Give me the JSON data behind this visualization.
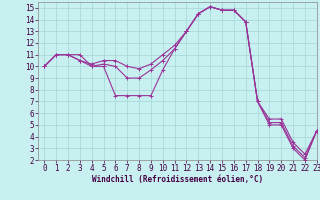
{
  "xlabel": "Windchill (Refroidissement éolien,°C)",
  "background_color": "#c8f0f0",
  "grid_color": "#aadada",
  "line_color": "#993399",
  "xlim": [
    -0.5,
    23
  ],
  "ylim": [
    2,
    15.5
  ],
  "xticks": [
    0,
    1,
    2,
    3,
    4,
    5,
    6,
    7,
    8,
    9,
    10,
    11,
    12,
    13,
    14,
    15,
    16,
    17,
    18,
    19,
    20,
    21,
    22,
    23
  ],
  "yticks": [
    2,
    3,
    4,
    5,
    6,
    7,
    8,
    9,
    10,
    11,
    12,
    13,
    14,
    15
  ],
  "series": [
    [
      10.0,
      11.0,
      11.0,
      11.0,
      10.0,
      10.0,
      7.5,
      7.5,
      7.5,
      7.5,
      9.7,
      11.5,
      13.0,
      14.5,
      15.1,
      14.8,
      14.8,
      13.8,
      7.0,
      5.0,
      5.0,
      3.0,
      2.0,
      4.5
    ],
    [
      10.0,
      11.0,
      11.0,
      10.5,
      10.0,
      10.2,
      10.0,
      9.0,
      9.0,
      9.7,
      10.5,
      11.5,
      13.0,
      14.5,
      15.1,
      14.8,
      14.8,
      13.8,
      7.0,
      5.2,
      5.2,
      3.2,
      2.2,
      4.5
    ],
    [
      10.0,
      11.0,
      11.0,
      10.5,
      10.2,
      10.5,
      10.5,
      10.0,
      9.8,
      10.2,
      11.0,
      11.8,
      13.0,
      14.5,
      15.1,
      14.8,
      14.8,
      13.8,
      7.0,
      5.5,
      5.5,
      3.5,
      2.5,
      4.5
    ]
  ],
  "marker": "+",
  "markersize": 3,
  "linewidth": 0.8,
  "tick_fontsize": 5.5,
  "xlabel_fontsize": 5.5
}
